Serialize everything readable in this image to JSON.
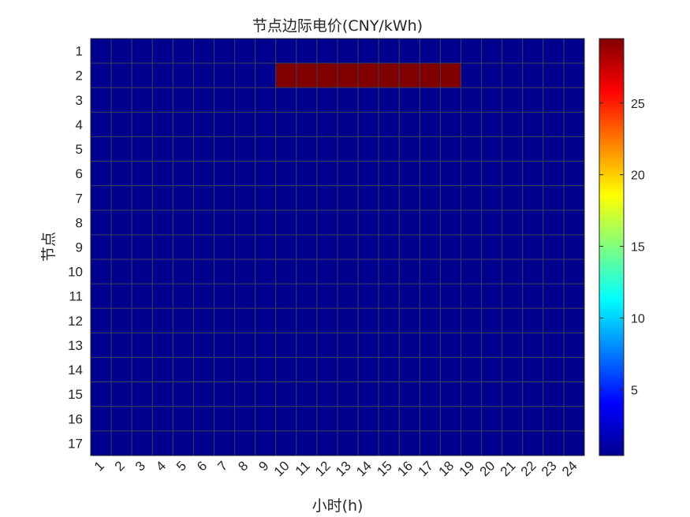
{
  "chart_data": {
    "type": "heatmap",
    "title": "节点边际电价(CNY/kWh)",
    "xlabel": "小时(h)",
    "ylabel": "节点",
    "x": [
      "1",
      "2",
      "3",
      "4",
      "5",
      "6",
      "7",
      "8",
      "9",
      "10",
      "11",
      "12",
      "13",
      "14",
      "15",
      "16",
      "17",
      "18",
      "19",
      "20",
      "21",
      "22",
      "23",
      "24"
    ],
    "y": [
      "1",
      "2",
      "3",
      "4",
      "5",
      "6",
      "7",
      "8",
      "9",
      "10",
      "11",
      "12",
      "13",
      "14",
      "15",
      "16",
      "17"
    ],
    "base_value": 0.4,
    "high_value": 29.5,
    "high_cells": {
      "row": "2",
      "hours": [
        "10",
        "11",
        "12",
        "13",
        "14",
        "15",
        "16",
        "17",
        "18"
      ]
    },
    "colorbar": {
      "colormap": "jet",
      "range": [
        0.4,
        29.5
      ],
      "ticks": [
        5,
        10,
        15,
        20,
        25
      ]
    },
    "grid": true,
    "colors": {
      "low": "#00008f",
      "high": "#800000",
      "grid_line": "#3c3c5a"
    }
  }
}
